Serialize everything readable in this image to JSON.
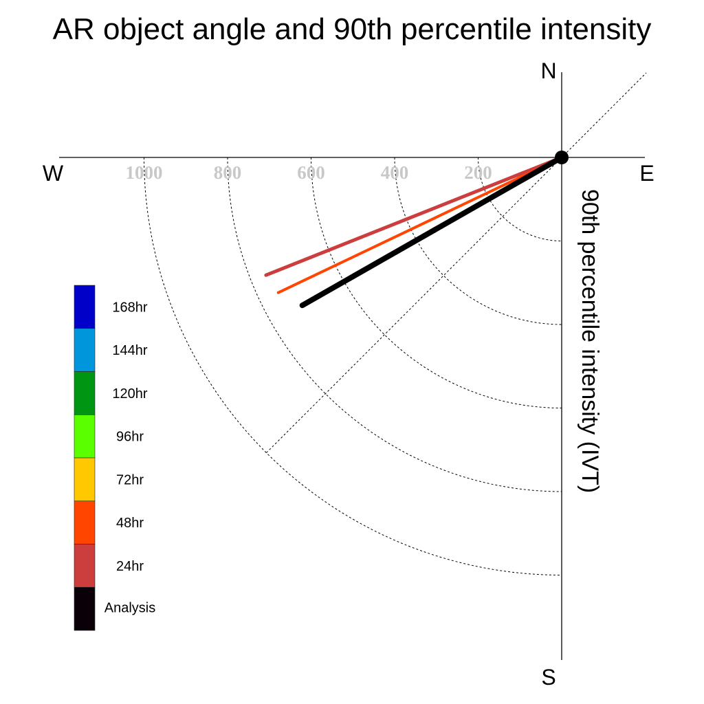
{
  "chart_data": {
    "type": "polar-vector",
    "title": "AR object angle and 90th percentile intensity",
    "radial_label": "90th percentile intensity (IVT)",
    "compass": {
      "n": "N",
      "e": "E",
      "s": "S",
      "w": "W"
    },
    "radial_ticks": [
      200,
      400,
      600,
      800,
      1000
    ],
    "radial_range": [
      0,
      1200
    ],
    "grid": true,
    "legend_placement": "left",
    "series": [
      {
        "name": "24hr",
        "angle_deg": 248.3,
        "intensity": 762,
        "color": "#cc3d3d"
      },
      {
        "name": "48hr",
        "angle_deg": 244.5,
        "intensity": 752,
        "color": "#ff4500"
      },
      {
        "name": "Analysis",
        "angle_deg": 240.3,
        "intensity": 715,
        "color": "#000000"
      }
    ],
    "legend": [
      {
        "label": "168hr",
        "color": "#0000c8"
      },
      {
        "label": "144hr",
        "color": "#0096dc"
      },
      {
        "label": "120hr",
        "color": "#009614"
      },
      {
        "label": "96hr",
        "color": "#5aff00"
      },
      {
        "label": "72hr",
        "color": "#ffc800"
      },
      {
        "label": "48hr",
        "color": "#ff4500"
      },
      {
        "label": "24hr",
        "color": "#cc3d3d"
      },
      {
        "label": "Analysis",
        "color": "#0a0008"
      }
    ]
  }
}
